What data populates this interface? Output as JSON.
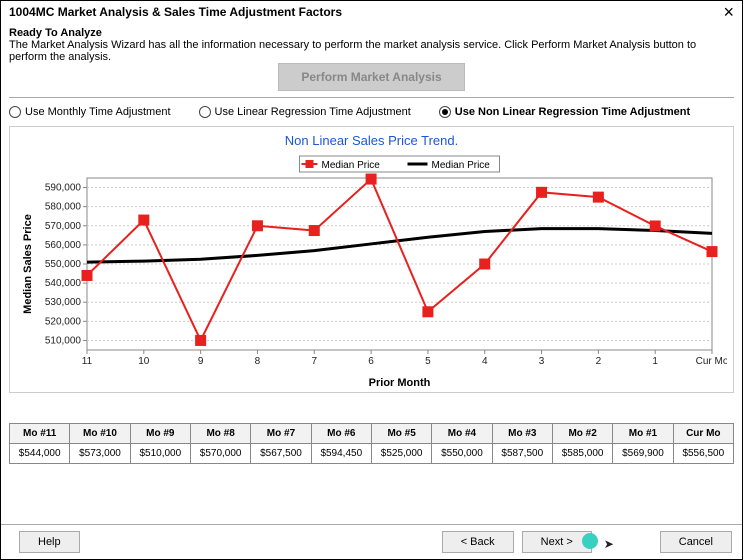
{
  "window": {
    "title": "1004MC Market Analysis & Sales Time Adjustment Factors"
  },
  "intro": {
    "ready": "Ready To Analyze",
    "desc": "The Market Analysis Wizard has all the information necessary to perform the market analysis service.  Click Perform Market Analysis button to perform the analysis.",
    "perform_label": "Perform Market Analysis"
  },
  "radios": {
    "monthly": "Use Monthly Time Adjustment",
    "linear": "Use Linear Regression Time Adjustment",
    "nonlinear": "Use Non Linear Regression Time Adjustment",
    "selected": "nonlinear"
  },
  "chart": {
    "title": "Non Linear Sales Price Trend.",
    "ylabel": "Median Sales Price",
    "xlabel": "Prior Month",
    "legend": {
      "series1": "Median Price",
      "series2": "Median Price"
    },
    "x_categories": [
      "11",
      "10",
      "9",
      "8",
      "7",
      "6",
      "5",
      "4",
      "3",
      "2",
      "1",
      "Cur Mo"
    ],
    "ylim": [
      505000,
      595000
    ],
    "yticks": [
      510000,
      520000,
      530000,
      540000,
      550000,
      560000,
      570000,
      580000,
      590000
    ],
    "series_points_color": "#e8201e",
    "series_line_color": "#000000",
    "marker_size": 5,
    "line_width_points": 2,
    "line_width_trend": 3,
    "median_values": [
      544000,
      573000,
      510000,
      570000,
      567500,
      594450,
      525000,
      550000,
      587500,
      585000,
      569900,
      556500
    ],
    "trend_values": [
      551000,
      551500,
      552500,
      554500,
      557000,
      560500,
      564000,
      567000,
      568500,
      568500,
      567500,
      566000
    ]
  },
  "table": {
    "headers": [
      "Mo #11",
      "Mo #10",
      "Mo #9",
      "Mo #8",
      "Mo #7",
      "Mo #6",
      "Mo #5",
      "Mo #4",
      "Mo #3",
      "Mo #2",
      "Mo #1",
      "Cur Mo"
    ],
    "row": [
      "$544,000",
      "$573,000",
      "$510,000",
      "$570,000",
      "$567,500",
      "$594,450",
      "$525,000",
      "$550,000",
      "$587,500",
      "$585,000",
      "$569,900",
      "$556,500"
    ]
  },
  "footer": {
    "help": "Help",
    "back": "< Back",
    "next": "Next >",
    "cancel": "Cancel"
  }
}
